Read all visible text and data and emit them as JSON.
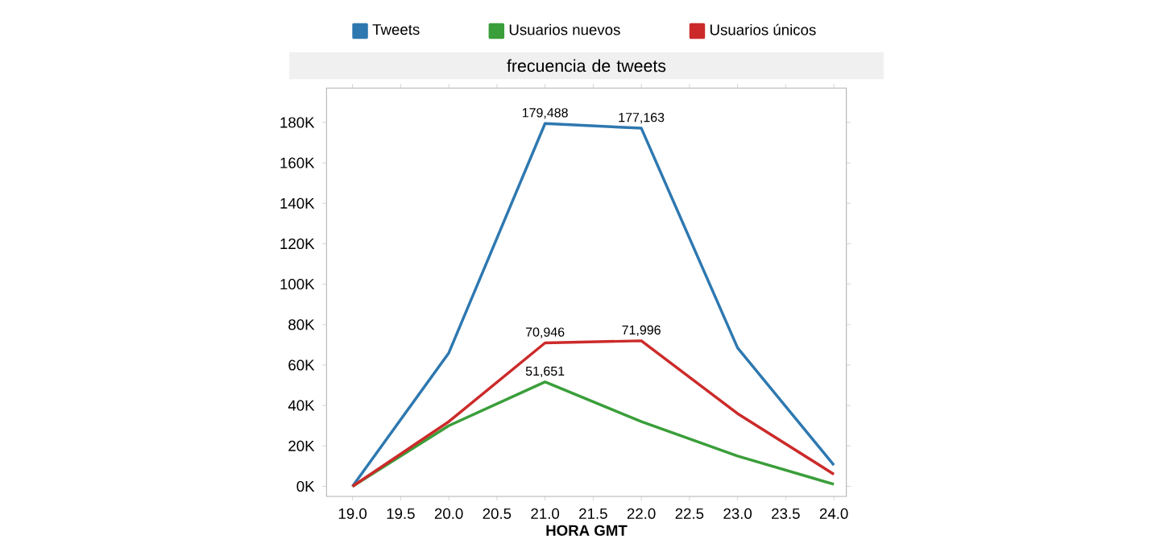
{
  "chart_data": {
    "type": "line",
    "title": "frecuencia de tweets",
    "xlabel": "HORA GMT",
    "x": [
      19.0,
      20.0,
      21.0,
      22.0,
      23.0,
      24.0
    ],
    "xlim": [
      18.73,
      24.13
    ],
    "xticks": [
      {
        "value": 19.0,
        "label": "19.0"
      },
      {
        "value": 19.5,
        "label": "19.5"
      },
      {
        "value": 20.0,
        "label": "20.0"
      },
      {
        "value": 20.5,
        "label": "20.5"
      },
      {
        "value": 21.0,
        "label": "21.0"
      },
      {
        "value": 21.5,
        "label": "21.5"
      },
      {
        "value": 22.0,
        "label": "22.0"
      },
      {
        "value": 22.5,
        "label": "22.5"
      },
      {
        "value": 23.0,
        "label": "23.0"
      },
      {
        "value": 23.5,
        "label": "23.5"
      },
      {
        "value": 24.0,
        "label": "24.0"
      }
    ],
    "ylim": [
      -5000,
      197000
    ],
    "yticks": [
      {
        "value": 0,
        "label": "0K"
      },
      {
        "value": 20000,
        "label": "20K"
      },
      {
        "value": 40000,
        "label": "40K"
      },
      {
        "value": 60000,
        "label": "60K"
      },
      {
        "value": 80000,
        "label": "80K"
      },
      {
        "value": 100000,
        "label": "100K"
      },
      {
        "value": 120000,
        "label": "120K"
      },
      {
        "value": 140000,
        "label": "140K"
      },
      {
        "value": 160000,
        "label": "160K"
      },
      {
        "value": 180000,
        "label": "180K"
      }
    ],
    "legend": "top",
    "series": [
      {
        "name": "Tweets",
        "color": "#2e78b0",
        "values": [
          0,
          66000,
          179488,
          177163,
          68500,
          10500
        ],
        "value_labels": [
          null,
          null,
          "179,488",
          "177,163",
          null,
          null
        ]
      },
      {
        "name": "Usuarios nuevos",
        "color": "#3a9e3a",
        "values": [
          0,
          30000,
          51651,
          32000,
          15000,
          1000
        ],
        "value_labels": [
          null,
          null,
          "51,651",
          null,
          null,
          null
        ]
      },
      {
        "name": "Usuarios únicos",
        "color": "#cc2a2a",
        "values": [
          0,
          32000,
          70946,
          71996,
          36000,
          6000
        ],
        "value_labels": [
          null,
          null,
          "70,946",
          "71,996",
          null,
          null
        ]
      }
    ]
  }
}
